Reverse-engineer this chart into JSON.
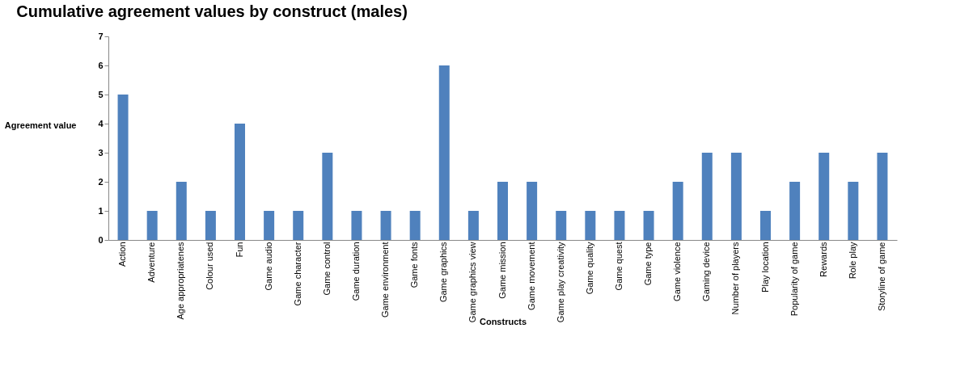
{
  "chart_data": {
    "type": "bar",
    "title": "Cumulative agreement values by construct (males)",
    "xlabel": "Constructs",
    "ylabel": "Agreement value",
    "categories": [
      "Action",
      "Adventure",
      "Age appropriatenes",
      "Colour used",
      "Fun",
      "Game audio",
      "Game character",
      "Game control",
      "Game duration",
      "Game environment",
      "Game fonts",
      "Game graphics",
      "Game graphics view",
      "Game mission",
      "Game movement",
      "Game play creativity",
      "Game quality",
      "Game quest",
      "Game type",
      "Game violence",
      "Gaming device",
      "Number of players",
      "Play location",
      "Popularity of game",
      "Rewards",
      "Role play",
      "Storyline of game"
    ],
    "values": [
      5,
      1,
      2,
      1,
      4,
      1,
      1,
      3,
      1,
      1,
      1,
      6,
      1,
      2,
      2,
      1,
      1,
      1,
      1,
      2,
      3,
      3,
      1,
      2,
      3,
      2,
      3
    ],
    "color": "#4f81bd",
    "ylim": [
      0,
      7
    ],
    "yticks": [
      0,
      1,
      2,
      3,
      4,
      5,
      6,
      7
    ],
    "grid": false
  }
}
